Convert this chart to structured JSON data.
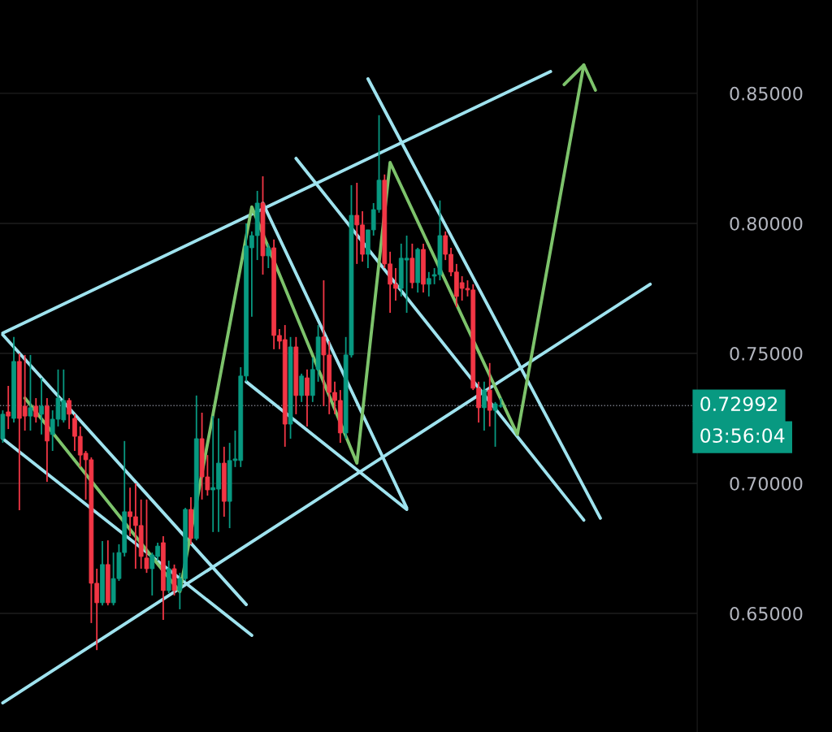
{
  "chart_data": {
    "type": "candlestick",
    "categories": [
      null,
      null,
      null,
      null,
      null,
      null,
      null,
      null,
      null,
      null,
      null,
      null,
      null,
      null,
      null,
      null,
      null,
      null,
      null,
      null,
      null,
      null,
      null,
      null,
      null,
      null,
      null,
      null,
      null,
      null,
      null,
      null,
      null,
      null,
      null,
      null,
      null,
      null,
      null,
      null,
      null,
      null,
      null,
      null,
      null,
      null,
      null,
      null,
      null,
      null,
      null,
      null,
      null,
      null,
      null,
      null,
      null,
      null,
      null,
      null,
      null,
      null,
      null,
      null,
      null,
      null,
      null,
      null,
      null,
      null,
      null,
      null,
      null,
      null,
      null,
      null,
      null,
      null,
      null,
      null,
      null,
      null,
      null,
      null,
      null,
      null,
      null,
      null,
      null,
      null,
      null,
      null,
      null,
      null,
      null,
      null,
      null,
      null,
      null,
      null,
      null,
      null,
      null,
      null,
      null,
      null,
      null,
      null,
      null,
      null,
      null,
      null,
      null,
      null,
      null,
      null,
      null,
      null,
      null,
      null,
      null,
      null,
      null,
      null,
      null,
      null
    ],
    "ohlc": [
      [
        0.7172,
        0.7281,
        0.7156,
        0.7266
      ],
      [
        0.7275,
        0.7375,
        0.7209,
        0.7259
      ],
      [
        0.725,
        0.7563,
        0.7234,
        0.7469
      ],
      [
        0.7469,
        0.75,
        0.6897,
        0.725
      ],
      [
        0.7297,
        0.7494,
        0.7203,
        0.7259
      ],
      [
        0.7259,
        0.7494,
        0.7203,
        0.7291
      ],
      [
        0.7297,
        0.7328,
        0.7234,
        0.7256
      ],
      [
        0.7266,
        0.7406,
        0.7188,
        0.7297
      ],
      [
        0.7297,
        0.7328,
        0.7006,
        0.7163
      ],
      [
        0.7188,
        0.7281,
        0.7125,
        0.7247
      ],
      [
        0.7247,
        0.7438,
        0.7219,
        0.7328
      ],
      [
        0.7244,
        0.7438,
        0.7234,
        0.7319
      ],
      [
        0.7319,
        0.7328,
        0.7209,
        0.7266
      ],
      [
        0.725,
        0.7266,
        0.7125,
        0.7181
      ],
      [
        0.7181,
        0.7219,
        0.7063,
        0.7109
      ],
      [
        0.7116,
        0.7125,
        0.6938,
        0.7091
      ],
      [
        0.7091,
        0.71,
        0.6463,
        0.6616
      ],
      [
        0.6616,
        0.6672,
        0.6359,
        0.6541
      ],
      [
        0.6541,
        0.6778,
        0.6531,
        0.6688
      ],
      [
        0.6688,
        0.6781,
        0.6531,
        0.6541
      ],
      [
        0.6541,
        0.6734,
        0.6531,
        0.6634
      ],
      [
        0.6634,
        0.6766,
        0.6625,
        0.6734
      ],
      [
        0.6734,
        0.7163,
        0.6719,
        0.6891
      ],
      [
        0.6891,
        0.6984,
        0.6797,
        0.6872
      ],
      [
        0.6872,
        0.7,
        0.6672,
        0.6838
      ],
      [
        0.6838,
        0.6938,
        0.6672,
        0.6719
      ],
      [
        0.6713,
        0.6938,
        0.6656,
        0.6672
      ],
      [
        0.6672,
        0.6734,
        0.6569,
        0.6725
      ],
      [
        0.6719,
        0.6772,
        0.6703,
        0.6759
      ],
      [
        0.6772,
        0.6797,
        0.6475,
        0.6588
      ],
      [
        0.6588,
        0.6703,
        0.6578,
        0.6672
      ],
      [
        0.6672,
        0.6688,
        0.6569,
        0.6588
      ],
      [
        0.6588,
        0.6656,
        0.6516,
        0.6634
      ],
      [
        0.6634,
        0.6906,
        0.6625,
        0.69
      ],
      [
        0.69,
        0.6947,
        0.6766,
        0.6788
      ],
      [
        0.6788,
        0.7338,
        0.6781,
        0.7172
      ],
      [
        0.7172,
        0.7272,
        0.6938,
        0.7025
      ],
      [
        0.7025,
        0.7109,
        0.6953,
        0.6975
      ],
      [
        0.6975,
        0.7259,
        0.6813,
        0.6984
      ],
      [
        0.6978,
        0.725,
        0.6813,
        0.7078
      ],
      [
        0.7078,
        0.7141,
        0.6872,
        0.6931
      ],
      [
        0.6931,
        0.7156,
        0.6828,
        0.7088
      ],
      [
        0.7088,
        0.7203,
        0.7063,
        0.7094
      ],
      [
        0.7088,
        0.7447,
        0.7063,
        0.7413
      ],
      [
        0.7413,
        0.8,
        0.7391,
        0.7913
      ],
      [
        0.7906,
        0.7969,
        0.7641,
        0.7953
      ],
      [
        0.7953,
        0.8125,
        0.7859,
        0.8078
      ],
      [
        0.8078,
        0.8181,
        0.7803,
        0.7875
      ],
      [
        0.7875,
        0.7922,
        0.7828,
        0.7906
      ],
      [
        0.7906,
        0.7938,
        0.7516,
        0.7569
      ],
      [
        0.7569,
        0.7594,
        0.7516,
        0.7547
      ],
      [
        0.7553,
        0.7609,
        0.7141,
        0.7228
      ],
      [
        0.7228,
        0.7563,
        0.7172,
        0.7525
      ],
      [
        0.7525,
        0.7563,
        0.7266,
        0.7338
      ],
      [
        0.7338,
        0.7422,
        0.7313,
        0.7413
      ],
      [
        0.7406,
        0.7438,
        0.7219,
        0.7338
      ],
      [
        0.7338,
        0.7484,
        0.7313,
        0.7438
      ],
      [
        0.7438,
        0.7609,
        0.7391,
        0.7563
      ],
      [
        0.7563,
        0.7781,
        0.7297,
        0.7494
      ],
      [
        0.7494,
        0.7547,
        0.7266,
        0.735
      ],
      [
        0.735,
        0.7391,
        0.7266,
        0.7319
      ],
      [
        0.7319,
        0.7359,
        0.7156,
        0.7194
      ],
      [
        0.7194,
        0.7563,
        0.7172,
        0.7494
      ],
      [
        0.7494,
        0.8147,
        0.7484,
        0.8031
      ],
      [
        0.8031,
        0.8156,
        0.7844,
        0.7994
      ],
      [
        0.7994,
        0.8047,
        0.7853,
        0.7881
      ],
      [
        0.7881,
        0.7975,
        0.7828,
        0.7975
      ],
      [
        0.7975,
        0.8078,
        0.7953,
        0.8053
      ],
      [
        0.8053,
        0.8416,
        0.8041,
        0.8166
      ],
      [
        0.8166,
        0.8188,
        0.7828,
        0.7844
      ],
      [
        0.7844,
        0.7891,
        0.7656,
        0.7766
      ],
      [
        0.7766,
        0.7828,
        0.7703,
        0.775
      ],
      [
        0.775,
        0.7922,
        0.7719,
        0.7866
      ],
      [
        0.7859,
        0.7953,
        0.7656,
        0.7866
      ],
      [
        0.7866,
        0.7922,
        0.775,
        0.7772
      ],
      [
        0.7772,
        0.7906,
        0.7734,
        0.79
      ],
      [
        0.79,
        0.7922,
        0.7734,
        0.7766
      ],
      [
        0.7766,
        0.7813,
        0.7719,
        0.7788
      ],
      [
        0.7797,
        0.7828,
        0.7766,
        0.7803
      ],
      [
        0.7803,
        0.8088,
        0.7781,
        0.7953
      ],
      [
        0.7953,
        0.7969,
        0.7859,
        0.7881
      ],
      [
        0.7881,
        0.7906,
        0.7797,
        0.7813
      ],
      [
        0.7813,
        0.7844,
        0.7678,
        0.7719
      ],
      [
        0.7772,
        0.7797,
        0.7703,
        0.775
      ],
      [
        0.775,
        0.7781,
        0.7719,
        0.7744
      ],
      [
        0.7744,
        0.7766,
        0.7359,
        0.7366
      ],
      [
        0.7366,
        0.7391,
        0.7234,
        0.7291
      ],
      [
        0.7291,
        0.7391,
        0.7203,
        0.7359
      ],
      [
        0.7359,
        0.7463,
        0.7219,
        0.7281
      ],
      [
        0.7281,
        0.7313,
        0.7141,
        0.7306
      ],
      [
        0.7297,
        0.7328,
        0.7291,
        0.72992
      ],
      null,
      null,
      null,
      null,
      null,
      null,
      null,
      null,
      null,
      null,
      null,
      null,
      null,
      null,
      null,
      null,
      null,
      null,
      null,
      null,
      null,
      null,
      null,
      null,
      null,
      null,
      null,
      null,
      null,
      null,
      null,
      null,
      null,
      null,
      null
    ],
    "colors": [
      "#089981",
      "#f23645",
      "#089981",
      "#f23645",
      "#f23645",
      "#089981",
      "#f23645",
      "#089981",
      "#f23645",
      "#089981",
      "#089981",
      "#089981",
      "#f23645",
      "#f23645",
      "#f23645",
      "#f23645",
      "#f23645",
      "#f23645",
      "#089981",
      "#f23645",
      "#089981",
      "#089981",
      "#089981",
      "#f23645",
      "#f23645",
      "#f23645",
      "#f23645",
      "#089981",
      "#089981",
      "#f23645",
      "#089981",
      "#f23645",
      "#089981",
      "#089981",
      "#f23645",
      "#089981",
      "#f23645",
      "#f23645",
      "#089981",
      "#089981",
      "#f23645",
      "#089981",
      "#089981",
      "#089981",
      "#089981",
      "#089981",
      "#089981",
      "#f23645",
      "#089981",
      "#f23645",
      "#f23645",
      "#f23645",
      "#089981",
      "#f23645",
      "#089981",
      "#f23645",
      "#089981",
      "#089981",
      "#f23645",
      "#f23645",
      "#f23645",
      "#f23645",
      "#089981",
      "#089981",
      "#f23645",
      "#f23645",
      "#089981",
      "#089981",
      "#089981",
      "#f23645",
      "#f23645",
      "#f23645",
      "#089981",
      "#089981",
      "#f23645",
      "#089981",
      "#f23645",
      "#089981",
      "#089981",
      "#089981",
      "#f23645",
      "#f23645",
      "#f23645",
      "#f23645",
      "#f23645",
      "#f23645",
      "#f23645",
      "#089981",
      "#f23645",
      "#089981",
      "#089981",
      null,
      null,
      null,
      null,
      null,
      null,
      null,
      null,
      null,
      null,
      null,
      null,
      null,
      null,
      null,
      null,
      null,
      null,
      null,
      null,
      null,
      null,
      null,
      null,
      null,
      null,
      null,
      null,
      null,
      null,
      null,
      null,
      null,
      null,
      null
    ],
    "series": [
      {
        "type": "line",
        "color": "#9fe3ef",
        "values": [
          0.7578,
          null,
          null,
          null,
          null,
          null,
          null,
          null,
          null,
          null,
          null,
          null,
          null,
          null,
          null,
          null,
          null,
          null,
          null,
          null,
          null,
          null,
          null,
          null,
          null,
          null,
          null,
          null,
          null,
          null,
          null,
          null,
          null,
          null,
          null,
          null,
          null,
          null,
          null,
          null,
          null,
          null,
          null,
          null,
          null,
          null,
          null,
          null,
          null,
          null,
          null,
          null,
          null,
          null,
          null,
          null,
          null,
          null,
          null,
          null,
          null,
          null,
          null,
          null,
          null,
          null,
          null,
          null,
          null,
          null,
          null,
          null,
          null,
          null,
          null,
          null,
          null,
          null,
          null,
          null,
          null,
          null,
          null,
          null,
          null,
          null,
          null,
          null,
          null,
          null,
          null,
          null,
          null,
          null,
          null,
          null,
          null,
          null,
          null,
          0.8584,
          null,
          null,
          null,
          null,
          null,
          null,
          null,
          null,
          null,
          null,
          null,
          null,
          null,
          null,
          null,
          null,
          null,
          null,
          null,
          null,
          null,
          null,
          null,
          null,
          null,
          null
        ]
      },
      {
        "type": "line",
        "color": "#9fe3ef",
        "values": [
          0.6156,
          null,
          null,
          null,
          null,
          null,
          null,
          null,
          null,
          null,
          null,
          null,
          null,
          null,
          null,
          null,
          null,
          null,
          null,
          null,
          null,
          null,
          null,
          null,
          null,
          null,
          null,
          null,
          null,
          null,
          null,
          null,
          null,
          null,
          null,
          null,
          null,
          null,
          null,
          null,
          null,
          null,
          null,
          null,
          null,
          null,
          null,
          null,
          null,
          null,
          null,
          null,
          null,
          null,
          null,
          null,
          null,
          null,
          null,
          null,
          null,
          null,
          null,
          null,
          null,
          null,
          null,
          null,
          null,
          null,
          null,
          null,
          null,
          null,
          null,
          null,
          null,
          null,
          null,
          null,
          null,
          null,
          null,
          null,
          null,
          null,
          null,
          null,
          null,
          null,
          null,
          null,
          null,
          null,
          null,
          null,
          null,
          null,
          null,
          null,
          null,
          null,
          null,
          null,
          null,
          null,
          null,
          null,
          null,
          null,
          null,
          null,
          null,
          null,
          null,
          null,
          null,
          0.7766,
          null,
          null,
          null,
          null,
          null,
          null,
          null,
          null
        ]
      },
      {
        "type": "line",
        "color": "#9fe3ef",
        "values": [
          0.7572,
          null,
          null,
          null,
          null,
          null,
          null,
          null,
          null,
          null,
          null,
          null,
          null,
          null,
          null,
          null,
          null,
          null,
          null,
          null,
          null,
          null,
          null,
          null,
          null,
          null,
          null,
          null,
          null,
          null,
          null,
          null,
          null,
          null,
          null,
          null,
          null,
          null,
          null,
          null,
          null,
          null,
          null,
          null,
          0.6534,
          null,
          null,
          null,
          null,
          null,
          null,
          null,
          null,
          null,
          null,
          null,
          null,
          null,
          null,
          null,
          null,
          null,
          null,
          null,
          null,
          null,
          null,
          null,
          null,
          null,
          null,
          null,
          null,
          null,
          null,
          null,
          null,
          null,
          null,
          null,
          null,
          null,
          null,
          null,
          null,
          null,
          null,
          null,
          null,
          null,
          null,
          null,
          null,
          null,
          null,
          null,
          null,
          null,
          null,
          null,
          null,
          null,
          null,
          null,
          null,
          null,
          null,
          null,
          null,
          null,
          null,
          null,
          null,
          null,
          null,
          null,
          null,
          null,
          null,
          null,
          null,
          null,
          null,
          null,
          null,
          null
        ]
      },
      {
        "type": "line",
        "color": "#9fe3ef",
        "values": [
          0.7172,
          null,
          null,
          null,
          null,
          null,
          null,
          null,
          null,
          null,
          null,
          null,
          null,
          null,
          null,
          null,
          null,
          null,
          null,
          null,
          null,
          null,
          null,
          null,
          null,
          null,
          null,
          null,
          null,
          null,
          null,
          null,
          null,
          null,
          null,
          null,
          null,
          null,
          null,
          null,
          null,
          null,
          null,
          null,
          null,
          0.6416,
          null,
          null,
          null,
          null,
          null,
          null,
          null,
          null,
          null,
          null,
          null,
          null,
          null,
          null,
          null,
          null,
          null,
          null,
          null,
          null,
          null,
          null,
          null,
          null,
          null,
          null,
          null,
          null,
          null,
          null,
          null,
          null,
          null,
          null,
          null,
          null,
          null,
          null,
          null,
          null,
          null,
          null,
          null,
          null,
          null,
          null,
          null,
          null,
          null,
          null,
          null,
          null,
          null,
          null,
          null,
          null,
          null,
          null,
          null,
          null,
          null,
          null,
          null,
          null,
          null,
          null,
          null,
          null,
          null,
          null,
          null,
          null,
          null,
          null,
          null,
          null,
          null,
          null,
          null,
          null
        ]
      },
      {
        "type": "line",
        "color": "#9fe3ef",
        "values": [
          null,
          null,
          null,
          null,
          null,
          null,
          null,
          null,
          null,
          null,
          null,
          null,
          null,
          null,
          null,
          null,
          null,
          null,
          null,
          null,
          null,
          null,
          null,
          null,
          null,
          null,
          null,
          null,
          null,
          null,
          null,
          null,
          null,
          null,
          null,
          null,
          null,
          null,
          null,
          null,
          null,
          null,
          null,
          null,
          0.7391,
          null,
          null,
          null,
          null,
          null,
          null,
          null,
          null,
          null,
          null,
          null,
          null,
          null,
          null,
          null,
          null,
          null,
          null,
          null,
          null,
          null,
          null,
          null,
          null,
          null,
          null,
          null,
          null,
          0.69,
          null,
          null,
          null,
          null,
          null,
          null,
          null,
          null,
          null,
          null,
          null,
          null,
          null,
          null,
          null,
          null,
          null,
          null,
          null,
          null,
          null,
          null,
          null,
          null,
          null,
          null,
          null,
          null,
          null,
          null,
          null,
          null,
          null,
          null,
          null,
          null,
          null,
          null,
          null,
          null,
          null,
          null,
          null,
          null,
          null,
          null,
          null,
          null,
          null,
          null,
          null,
          null
        ]
      },
      {
        "type": "line",
        "color": "#9fe3ef",
        "values": [
          null,
          null,
          null,
          null,
          null,
          null,
          null,
          null,
          null,
          null,
          null,
          null,
          null,
          null,
          null,
          null,
          null,
          null,
          null,
          null,
          null,
          null,
          null,
          null,
          null,
          null,
          null,
          null,
          null,
          null,
          null,
          null,
          null,
          null,
          null,
          null,
          null,
          null,
          null,
          null,
          null,
          null,
          null,
          null,
          null,
          null,
          null,
          0.8078,
          null,
          null,
          null,
          null,
          null,
          null,
          null,
          null,
          null,
          null,
          null,
          null,
          null,
          null,
          null,
          null,
          null,
          null,
          null,
          null,
          null,
          null,
          null,
          null,
          null,
          0.6906,
          null,
          null,
          null,
          null,
          null,
          null,
          null,
          null,
          null,
          null,
          null,
          null,
          null,
          null,
          null,
          null,
          null,
          null,
          null,
          null,
          null,
          null,
          null,
          null,
          null,
          null,
          null,
          null,
          null,
          null,
          null,
          null,
          null,
          null,
          null,
          null,
          null,
          null,
          null,
          null,
          null,
          null,
          null,
          null,
          null,
          null,
          null,
          null,
          null,
          null,
          null,
          null
        ]
      },
      {
        "type": "line",
        "color": "#9fe3ef",
        "values": [
          null,
          null,
          null,
          null,
          null,
          null,
          null,
          null,
          null,
          null,
          null,
          null,
          null,
          null,
          null,
          null,
          null,
          null,
          null,
          null,
          null,
          null,
          null,
          null,
          null,
          null,
          null,
          null,
          null,
          null,
          null,
          null,
          null,
          null,
          null,
          null,
          null,
          null,
          null,
          null,
          null,
          null,
          null,
          null,
          null,
          null,
          null,
          null,
          null,
          null,
          null,
          null,
          null,
          0.825,
          null,
          null,
          null,
          null,
          null,
          null,
          null,
          null,
          null,
          null,
          null,
          null,
          null,
          null,
          null,
          null,
          null,
          null,
          null,
          null,
          null,
          null,
          null,
          null,
          null,
          null,
          null,
          null,
          null,
          null,
          null,
          null,
          null,
          null,
          null,
          null,
          null,
          null,
          null,
          null,
          null,
          null,
          null,
          null,
          null,
          null,
          null,
          null,
          null,
          null,
          null,
          0.6859,
          null,
          null,
          null,
          null,
          null,
          null,
          null,
          null,
          null,
          null,
          null,
          null,
          null,
          null,
          null,
          null,
          null,
          null,
          null,
          null
        ]
      },
      {
        "type": "line",
        "color": "#9fe3ef",
        "values": [
          null,
          null,
          null,
          null,
          null,
          null,
          null,
          null,
          null,
          null,
          null,
          null,
          null,
          null,
          null,
          null,
          null,
          null,
          null,
          null,
          null,
          null,
          null,
          null,
          null,
          null,
          null,
          null,
          null,
          null,
          null,
          null,
          null,
          null,
          null,
          null,
          null,
          null,
          null,
          null,
          null,
          null,
          null,
          null,
          null,
          null,
          null,
          null,
          null,
          null,
          null,
          null,
          null,
          null,
          null,
          null,
          null,
          null,
          null,
          null,
          null,
          null,
          null,
          null,
          null,
          null,
          0.8556,
          null,
          null,
          null,
          null,
          null,
          null,
          null,
          null,
          null,
          null,
          null,
          null,
          null,
          null,
          null,
          null,
          null,
          null,
          null,
          null,
          null,
          null,
          null,
          null,
          null,
          null,
          null,
          null,
          null,
          null,
          null,
          null,
          null,
          null,
          null,
          null,
          null,
          null,
          null,
          null,
          null,
          0.6866,
          null,
          null,
          null,
          null,
          null,
          null,
          null,
          null,
          null,
          null,
          null,
          null,
          null,
          null,
          null,
          null,
          null
        ]
      },
      {
        "type": "line",
        "color": "#7dc36b",
        "values": [
          null,
          null,
          null,
          null,
          0.7328,
          null,
          null,
          null,
          null,
          null,
          null,
          null,
          null,
          null,
          null,
          null,
          null,
          null,
          null,
          null,
          null,
          null,
          null,
          null,
          null,
          null,
          null,
          null,
          null,
          null,
          null,
          null,
          0.6584,
          null,
          null,
          null,
          null,
          null,
          null,
          null,
          null,
          null,
          null,
          null,
          null,
          0.8063,
          null,
          null,
          null,
          null,
          null,
          null,
          null,
          null,
          null,
          null,
          null,
          null,
          null,
          null,
          null,
          null,
          null,
          null,
          0.7078,
          null,
          null,
          null,
          null,
          null,
          0.8234,
          null,
          null,
          null,
          null,
          null,
          null,
          null,
          null,
          null,
          null,
          null,
          null,
          null,
          null,
          null,
          null,
          null,
          null,
          null,
          null,
          null,
          null,
          0.7188,
          null,
          null,
          null,
          null,
          null,
          null,
          null,
          null,
          null,
          null,
          null,
          0.8609,
          null,
          null,
          null,
          null,
          null,
          null,
          null,
          null,
          null,
          null,
          null,
          null,
          null,
          null,
          null,
          null,
          null,
          null,
          null,
          null
        ]
      }
    ],
    "ylim": [
      0.6044,
      0.8859
    ],
    "yticks": [
      {
        "value": 0.65,
        "label": "0.65000"
      },
      {
        "value": 0.7,
        "label": "0.70000"
      },
      {
        "value": 0.75,
        "label": "0.75000"
      },
      {
        "value": 0.8,
        "label": "0.80000"
      },
      {
        "value": 0.85,
        "label": "0.85000"
      }
    ],
    "grid": "y",
    "tick_labels": "y",
    "ref_lines": [
      {
        "axis": "y",
        "value": 0.72992,
        "label": "0.72992",
        "color": "#787b86",
        "line_style": "dotted"
      }
    ],
    "annotations": [
      "03:56:04"
    ]
  }
}
